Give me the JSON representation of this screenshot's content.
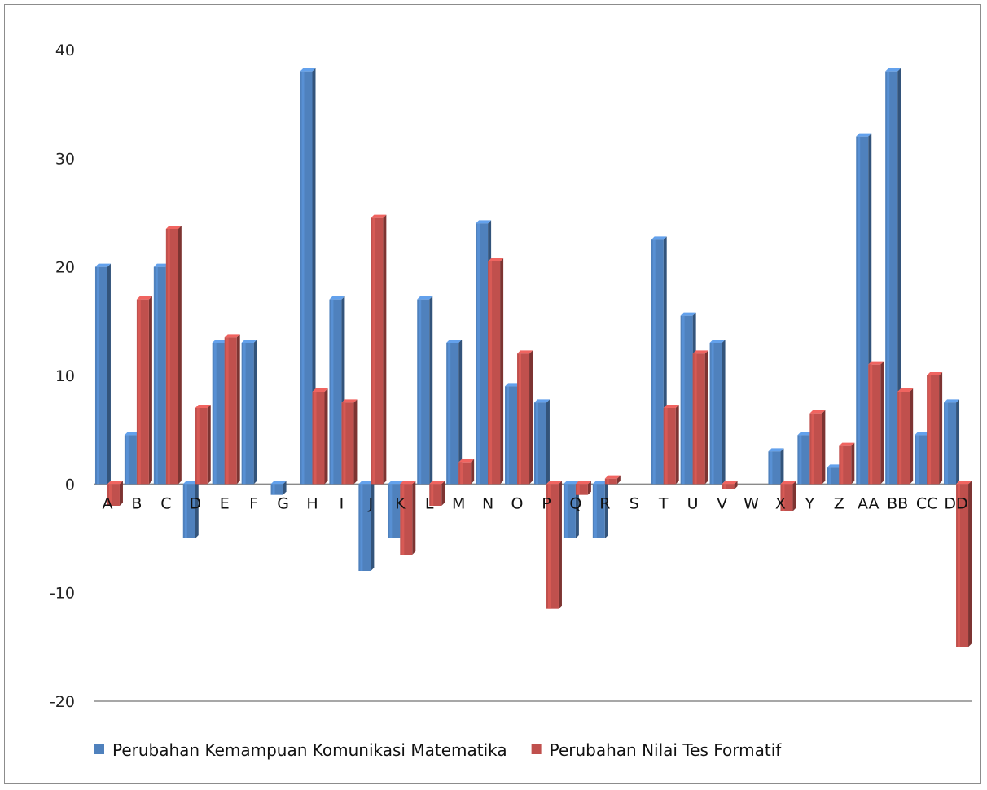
{
  "chart_data": {
    "type": "bar",
    "categories": [
      "A",
      "B",
      "C",
      "D",
      "E",
      "F",
      "G",
      "H",
      "I",
      "J",
      "K",
      "L",
      "M",
      "N",
      "O",
      "P",
      "Q",
      "R",
      "S",
      "T",
      "U",
      "V",
      "W",
      "X",
      "Y",
      "Z",
      "AA",
      "BB",
      "CC",
      "DD"
    ],
    "series": [
      {
        "name": "Perubahan Kemampuan Komunikasi Matematika",
        "color": "#4f81bd",
        "values": [
          20,
          4.5,
          20,
          -5,
          13,
          13,
          -1,
          38,
          17,
          -8,
          -5,
          17,
          13,
          24,
          9,
          7.5,
          -5,
          -5,
          0,
          22.5,
          15.5,
          13,
          0,
          3,
          4.5,
          1.5,
          32,
          38,
          4.5,
          7.5
        ]
      },
      {
        "name": "Perubahan Nilai Tes Formatif",
        "color": "#c0504d",
        "values": [
          -2,
          17,
          23.5,
          7,
          13.5,
          0,
          0,
          8.5,
          7.5,
          24.5,
          -6.5,
          -2,
          2,
          20.5,
          12,
          -11.5,
          -1,
          0.5,
          0,
          7,
          12,
          -0.5,
          0,
          -2.5,
          6.5,
          3.5,
          11,
          8.5,
          10,
          -15
        ]
      }
    ],
    "yticks": [
      40,
      30,
      20,
      10,
      0,
      -10,
      -20
    ],
    "ylim": [
      -20,
      40
    ],
    "grid": "zero-line and bottom line only",
    "legend_position": "bottom-left",
    "title": "",
    "xlabel": "",
    "ylabel": ""
  }
}
